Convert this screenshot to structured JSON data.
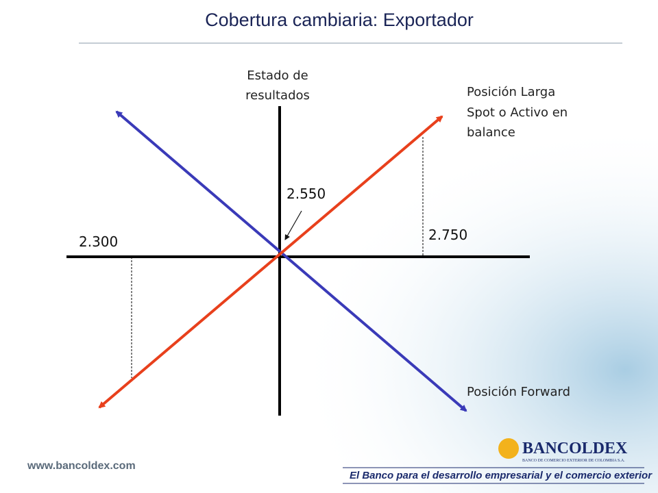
{
  "header": {
    "title": "Cobertura cambiaria: Exportador"
  },
  "diagram": {
    "y_axis_label": [
      "Estado de",
      "resultados"
    ],
    "long_position_label": [
      "Posición Larga",
      "Spot o Activo en",
      "balance"
    ],
    "forward_position_label": "Posición Forward",
    "center_rate": "2.550",
    "high_rate": "2.750",
    "low_rate": "2.300"
  },
  "footer": {
    "url": "www.bancoldex.com",
    "brand": "BANCOLDEX",
    "brand_subtitle": "BANCO DE COMERCIO EXTERIOR DE COLOMBIA S.A.",
    "slogan": "El Banco para el desarrollo empresarial y el comercio exterior"
  }
}
